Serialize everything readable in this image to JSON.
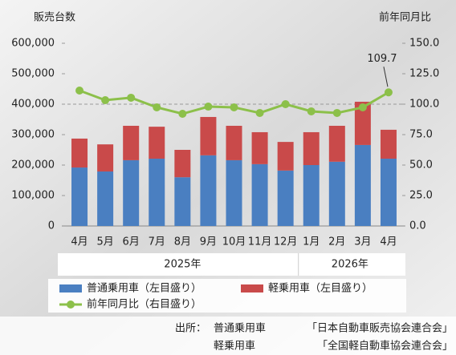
{
  "chart_data": {
    "type": "bar",
    "y_axis_title": "販売台数",
    "y2_axis_title": "前年同月比",
    "categories": [
      "4月",
      "5月",
      "6月",
      "7月",
      "8月",
      "9月",
      "10月",
      "11月",
      "12月",
      "1月",
      "2月",
      "3月",
      "4月"
    ],
    "category_groups": [
      {
        "label": "2025年",
        "span": 9
      },
      {
        "label": "2026年",
        "span": 4
      }
    ],
    "series": [
      {
        "name": "普通乗用車（左目盛り）",
        "color": "#4a7fc1",
        "stack": true,
        "values": [
          192000,
          179000,
          216000,
          221000,
          160000,
          232000,
          216000,
          203000,
          182000,
          200000,
          211000,
          266000,
          221000
        ]
      },
      {
        "name": "軽乗用車（左目盛り）",
        "color": "#c94a4a",
        "stack": true,
        "values": [
          95000,
          89000,
          113000,
          105000,
          90000,
          126000,
          113000,
          105000,
          94000,
          108000,
          118000,
          142000,
          95000
        ]
      },
      {
        "name": "前年同月比（右目盛り）",
        "color": "#8cc04a",
        "type": "line",
        "axis": "y2",
        "values": [
          111.2,
          103.3,
          105.3,
          97.4,
          92.1,
          98.0,
          97.4,
          92.8,
          100.0,
          94.1,
          92.8,
          97.4,
          109.7
        ]
      }
    ],
    "labeled_point": 12,
    "reference_line": 100,
    "ylim": [
      0,
      600000
    ],
    "yticks": [
      0,
      {
        "value": 100000,
        "label": "100,000"
      },
      {
        "value": 200000,
        "label": "200,000"
      },
      {
        "value": 300000,
        "label": "300,000"
      },
      {
        "value": 400000,
        "label": "400,000"
      },
      {
        "value": 500000,
        "label": "500,000"
      },
      {
        "value": 600000,
        "label": "600,000"
      }
    ],
    "y2lim": [
      0,
      150
    ],
    "y2ticks": [
      {
        "value": 0,
        "label": "0.0"
      },
      {
        "value": 25,
        "label": "25.0"
      },
      {
        "value": 50,
        "label": "50.0"
      },
      {
        "value": 75,
        "label": "75.0"
      },
      {
        "value": 100,
        "label": "100.0"
      },
      {
        "value": 125,
        "label": "125.0"
      },
      {
        "value": 150,
        "label": "150.0"
      }
    ],
    "source": {
      "prefix": "出所：",
      "lines": [
        [
          "普通乗用車",
          "「日本自動車販売協会連合会」"
        ],
        [
          "軽乗用車",
          "「全国軽自動車協会連合会」"
        ]
      ]
    }
  }
}
